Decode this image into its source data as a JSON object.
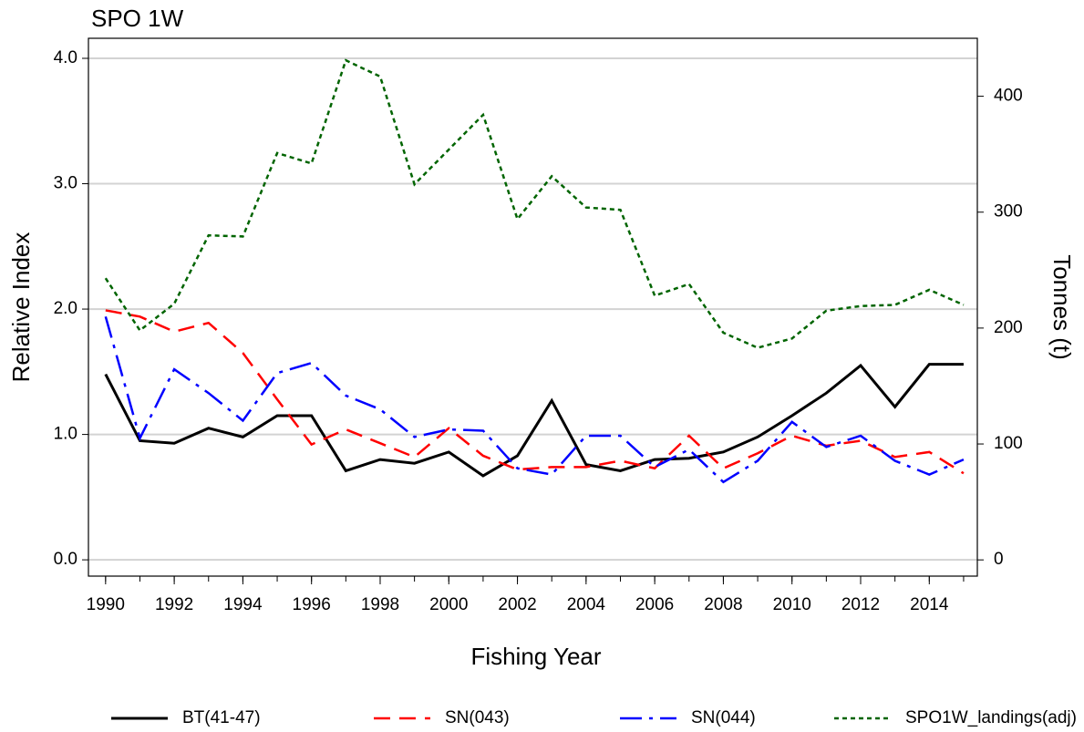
{
  "chart_data": {
    "type": "line",
    "title": "SPO 1W",
    "x_label": "Fishing Year",
    "y_label": "Relative Index",
    "y2_label": "Tonnes (t)",
    "x": [
      1990,
      1991,
      1992,
      1993,
      1994,
      1995,
      1996,
      1997,
      1998,
      1999,
      2000,
      2001,
      2002,
      2003,
      2004,
      2005,
      2006,
      2007,
      2008,
      2009,
      2010,
      2011,
      2012,
      2013,
      2014,
      2015
    ],
    "xlim": [
      1989.5,
      2015.4
    ],
    "xticks": [
      1990,
      1992,
      1994,
      1996,
      1998,
      2000,
      2002,
      2004,
      2006,
      2008,
      2010,
      2012,
      2014
    ],
    "ylim": [
      -0.13,
      4.16
    ],
    "yticks": [
      {
        "value": 0,
        "label": "0.0"
      },
      {
        "value": 1,
        "label": "1.0"
      },
      {
        "value": 2,
        "label": "2.0"
      },
      {
        "value": 3,
        "label": "3.0"
      },
      {
        "value": 4,
        "label": "4.0"
      }
    ],
    "y2lim": [
      -14,
      450
    ],
    "y2ticks": [
      0,
      100,
      200,
      300,
      400
    ],
    "grid": true,
    "legend": "bottom",
    "series": [
      {
        "name": "BT(41-47)",
        "color": "#000000",
        "dash": "solid",
        "values": [
          1.48,
          0.95,
          0.93,
          1.05,
          0.98,
          1.15,
          1.15,
          0.71,
          0.8,
          0.77,
          0.86,
          0.67,
          0.83,
          1.27,
          0.76,
          0.71,
          0.8,
          0.81,
          0.86,
          0.98,
          1.15,
          1.33,
          1.55,
          1.22,
          1.56,
          1.56
        ]
      },
      {
        "name": "SN(043)",
        "color": "#ff0000",
        "dash": "dashed",
        "values": [
          1.99,
          1.94,
          1.82,
          1.89,
          1.65,
          1.28,
          0.92,
          1.04,
          0.93,
          0.82,
          1.05,
          0.83,
          0.72,
          0.74,
          0.74,
          0.79,
          0.73,
          0.99,
          0.73,
          0.85,
          0.99,
          0.91,
          0.95,
          0.82,
          0.86,
          0.69
        ]
      },
      {
        "name": "SN(044)",
        "color": "#0000ff",
        "dash": "dashdot",
        "values": [
          1.94,
          0.97,
          1.52,
          1.33,
          1.11,
          1.49,
          1.57,
          1.31,
          1.2,
          0.98,
          1.04,
          1.03,
          0.73,
          0.68,
          0.99,
          0.99,
          0.74,
          0.88,
          0.62,
          0.79,
          1.1,
          0.9,
          0.99,
          0.79,
          0.68,
          0.8
        ]
      },
      {
        "name": "SPO1W_landings(adj)",
        "color": "#006400",
        "dash": "dotted",
        "axis": "y2",
        "values": [
          243,
          198,
          221,
          280,
          279,
          351,
          342,
          431,
          417,
          324,
          354,
          384,
          294,
          331,
          304,
          302,
          228,
          238,
          196,
          183,
          191,
          215,
          219,
          220,
          233,
          220
        ]
      }
    ]
  }
}
